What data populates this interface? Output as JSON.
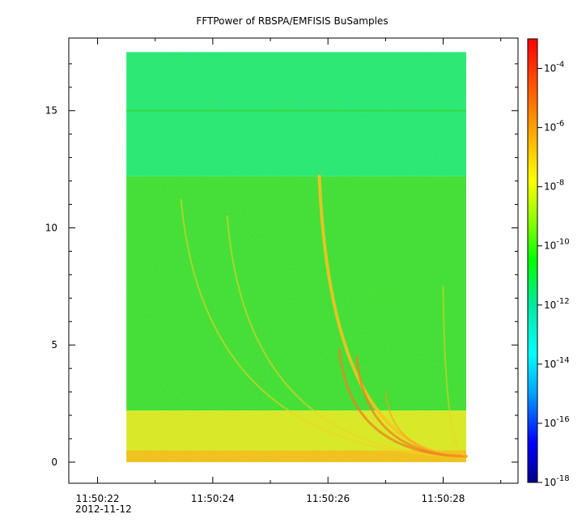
{
  "chart_data": {
    "type": "heatmap",
    "title": "FFTPower of RBSPA/EMFISIS  BuSamples",
    "xlabel": "",
    "ylabel": "",
    "x_axis": {
      "ticks": [
        {
          "value": "11:50:22",
          "second": 22
        },
        {
          "value": "11:50:24",
          "second": 24
        },
        {
          "value": "11:50:26",
          "second": 26
        },
        {
          "value": "11:50:28",
          "second": 28
        }
      ],
      "date_label": "2012-11-12",
      "range_seconds": [
        21.5,
        29.3
      ],
      "data_range_seconds": [
        22.5,
        28.4
      ]
    },
    "y_axis": {
      "ticks": [
        "0",
        "5",
        "10",
        "15"
      ],
      "range": [
        -0.9,
        18.1
      ],
      "data_range": [
        0,
        17.5
      ]
    },
    "colorbar": {
      "scale": "log",
      "range": [
        1e-18,
        0.001
      ],
      "ticks": [
        {
          "base": "10",
          "exp": "-4",
          "value": 0.0001
        },
        {
          "base": "10",
          "exp": "-6",
          "value": 1e-06
        },
        {
          "base": "10",
          "exp": "-8",
          "value": 1e-08
        },
        {
          "base": "10",
          "exp": "-10",
          "value": 1e-10
        },
        {
          "base": "10",
          "exp": "-12",
          "value": 1e-12
        },
        {
          "base": "10",
          "exp": "-14",
          "value": 1e-14
        },
        {
          "base": "10",
          "exp": "-16",
          "value": 1e-16
        },
        {
          "base": "10",
          "exp": "-18",
          "value": 1e-18
        }
      ],
      "colormap": [
        "#00008b",
        "#0000ff",
        "#00a0ff",
        "#00ffff",
        "#00e8a0",
        "#00ff00",
        "#80ff00",
        "#ffff00",
        "#ffa000",
        "#ff4000",
        "#ff0000"
      ]
    },
    "bands": [
      {
        "y_from": 12.2,
        "y_to": 17.5,
        "power": 1e-12,
        "color": "#22e87a"
      },
      {
        "y_from": 2.2,
        "y_to": 12.2,
        "power": 1e-10,
        "color": "#3dde3a"
      },
      {
        "y_from": 0.5,
        "y_to": 2.2,
        "power": 1e-08,
        "color": "#d8e82a"
      },
      {
        "y_from": 0,
        "y_to": 0.5,
        "power": 1e-07,
        "color": "#f0c020"
      }
    ],
    "line_15": {
      "y": 15,
      "power": 1e-10,
      "color": "#38d840"
    },
    "chorus_elements": [
      {
        "t_start": 23.45,
        "t_end": 28.4,
        "f_top": 11.2,
        "width": 2.0,
        "color": "#f5d020",
        "opacity": 0.55
      },
      {
        "t_start": 24.25,
        "t_end": 28.4,
        "f_top": 10.5,
        "width": 2.0,
        "color": "#f5d020",
        "opacity": 0.55
      },
      {
        "t_start": 25.85,
        "t_end": 28.4,
        "f_top": 12.2,
        "width": 4.0,
        "color": "#ffc020",
        "opacity": 0.85
      },
      {
        "t_start": 26.2,
        "t_end": 28.4,
        "f_top": 4.8,
        "width": 3.0,
        "color": "#f08020",
        "opacity": 0.75
      },
      {
        "t_start": 26.5,
        "t_end": 28.4,
        "f_top": 4.5,
        "width": 3.0,
        "color": "#f08020",
        "opacity": 0.7
      },
      {
        "t_start": 27.0,
        "t_end": 28.4,
        "f_top": 3.0,
        "width": 2.0,
        "color": "#f0a020",
        "opacity": 0.6
      },
      {
        "t_start": 28.0,
        "t_end": 28.4,
        "f_top": 7.5,
        "width": 2.0,
        "color": "#f5d020",
        "opacity": 0.5
      }
    ]
  }
}
